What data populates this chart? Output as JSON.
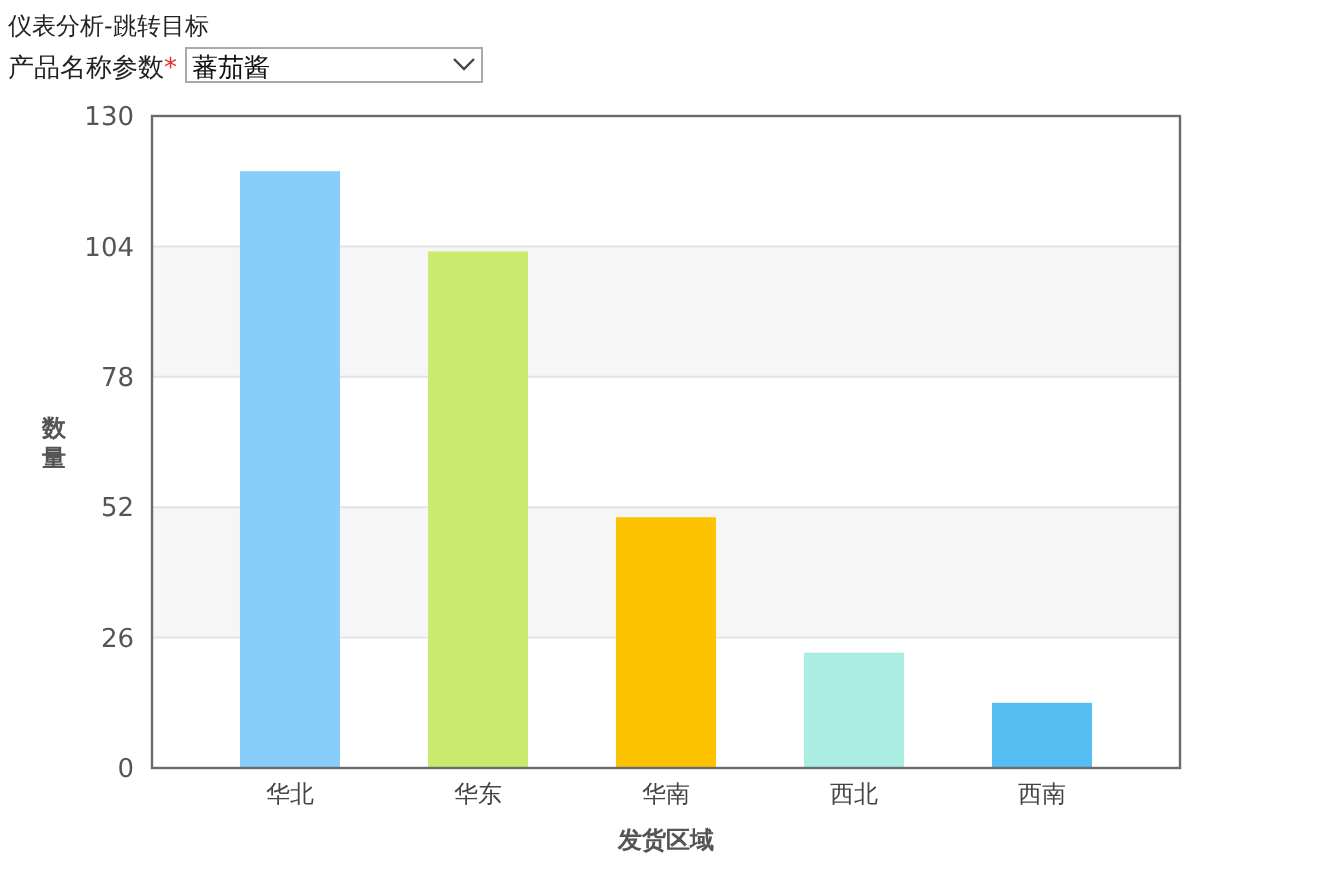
{
  "chart_data": {
    "type": "bar",
    "title": "仪表分析-跳转目标",
    "annotations": [
      "产品名称参数*",
      "蕃茄酱"
    ],
    "xlabel": "发货区域",
    "ylabel": "数量",
    "categories": [
      "华北",
      "华东",
      "华南",
      "西北",
      "西南"
    ],
    "values": [
      119,
      103,
      50,
      23,
      13
    ],
    "colors": [
      "#88cefa",
      "#cbea70",
      "#fdc300",
      "#abede3",
      "#56bdf3"
    ],
    "ylim": [
      0,
      130
    ],
    "yticks": [
      0,
      26,
      52,
      78,
      104,
      130
    ],
    "grid": "y",
    "bands": [
      {
        "axis": "y",
        "from": 26,
        "to": 52,
        "color": "#f6f6f6"
      },
      {
        "axis": "y",
        "from": 78,
        "to": 104,
        "color": "#f6f6f6"
      }
    ]
  }
}
